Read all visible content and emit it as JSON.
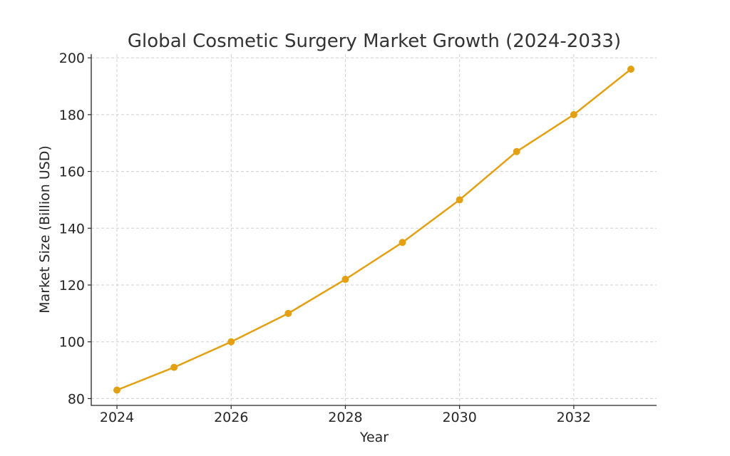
{
  "chart_data": {
    "type": "line",
    "title": "Global Cosmetic Surgery Market Growth (2024-2033)",
    "xlabel": "Year",
    "ylabel": "Market Size (Billion USD)",
    "x": [
      2024,
      2025,
      2026,
      2027,
      2028,
      2029,
      2030,
      2031,
      2032,
      2033
    ],
    "series": [
      {
        "values": [
          83,
          91,
          100,
          110,
          122,
          135,
          150,
          167,
          180,
          196
        ],
        "color": "#e3a012"
      }
    ],
    "xlim": [
      2023.55,
      2033.45
    ],
    "ylim": [
      77.6,
      201.3
    ],
    "xticks": [
      2024,
      2026,
      2028,
      2030,
      2032
    ],
    "yticks": [
      80,
      100,
      120,
      140,
      160,
      180,
      200
    ],
    "grid": true,
    "marker": "circle"
  }
}
